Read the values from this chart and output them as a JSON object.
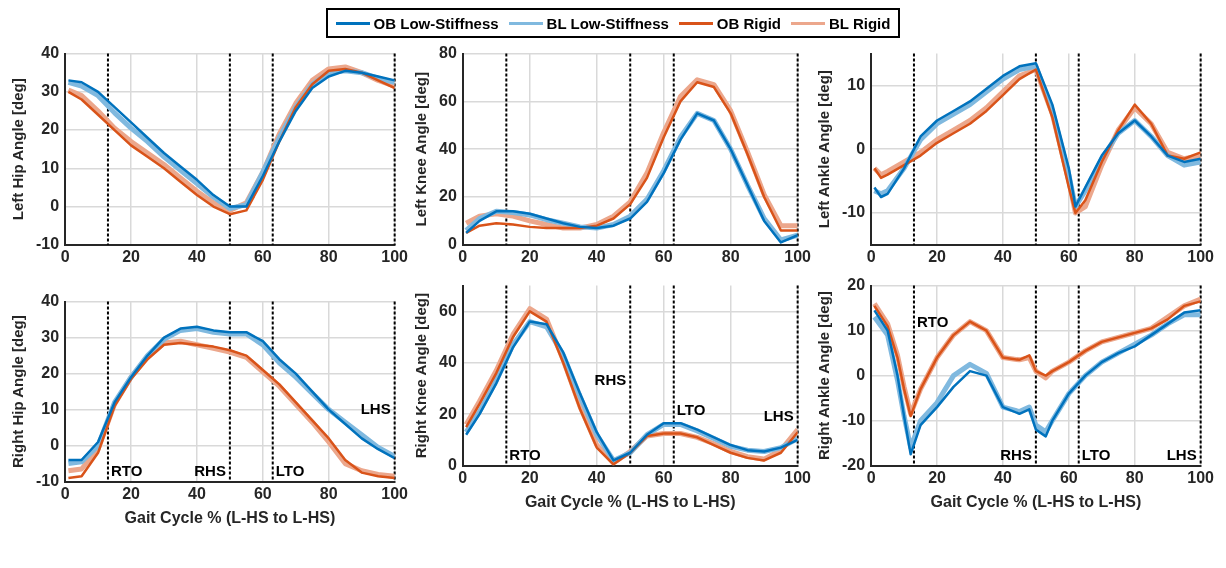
{
  "chart_data": [
    {
      "type": "line",
      "ylabel": "Left Hip Angle [deg]",
      "legend": "top",
      "grid": true,
      "xlim": [
        0,
        100
      ],
      "xticks": [
        0,
        20,
        40,
        60,
        80,
        100
      ],
      "ylim": [
        -10,
        40
      ],
      "yticks": [
        -10,
        0,
        10,
        20,
        30,
        40
      ],
      "x": [
        1,
        5,
        10,
        15,
        20,
        25,
        30,
        35,
        40,
        45,
        50,
        55,
        60,
        65,
        70,
        75,
        80,
        85,
        90,
        95,
        100
      ],
      "series": [
        {
          "name": "OB Low-Stiffness",
          "color": "#0072bd",
          "values": [
            33,
            32.5,
            30,
            26,
            22,
            18,
            14,
            10.5,
            7,
            3,
            0,
            0,
            8,
            17,
            25,
            31,
            34,
            35.5,
            35,
            34,
            33
          ]
        },
        {
          "name": "BL Low-Stiffness",
          "color": "#80b9df",
          "values": [
            32.5,
            31.5,
            29,
            24.5,
            20.5,
            17,
            13,
            9.5,
            6,
            2.5,
            -0.5,
            0.5,
            9,
            18,
            26,
            32,
            35,
            35.5,
            35,
            33.5,
            32.5
          ]
        },
        {
          "name": "OB Rigid",
          "color": "#d95319",
          "values": [
            30,
            28,
            24,
            20,
            16,
            13,
            10,
            6.5,
            3,
            0,
            -2,
            -1,
            7,
            17,
            26,
            32,
            35.5,
            36,
            35,
            33,
            31
          ]
        },
        {
          "name": "BL Rigid",
          "color": "#eca78c",
          "values": [
            30.5,
            29,
            25,
            20.5,
            17,
            14,
            11,
            7.5,
            4,
            1,
            -1,
            1,
            9,
            19,
            27,
            33,
            36,
            36.5,
            35,
            33,
            31.5
          ]
        }
      ],
      "ref_lines": [
        {
          "axis": "x",
          "value": 13,
          "line_style": "dotted",
          "color": "#000000"
        },
        {
          "axis": "x",
          "value": 50,
          "line_style": "dotted",
          "color": "#000000"
        },
        {
          "axis": "x",
          "value": 63,
          "line_style": "dotted",
          "color": "#000000"
        },
        {
          "axis": "x",
          "value": 100,
          "line_style": "dotted",
          "color": "#000000"
        }
      ]
    },
    {
      "type": "line",
      "ylabel": "Left Knee Angle [deg]",
      "grid": true,
      "xlim": [
        0,
        100
      ],
      "xticks": [
        0,
        20,
        40,
        60,
        80,
        100
      ],
      "ylim": [
        0,
        80
      ],
      "yticks": [
        0,
        20,
        40,
        60,
        80
      ],
      "x": [
        1,
        5,
        10,
        15,
        20,
        25,
        30,
        35,
        40,
        45,
        50,
        55,
        60,
        65,
        70,
        75,
        80,
        85,
        90,
        95,
        100
      ],
      "series": [
        {
          "color": "#0072bd",
          "values": [
            5,
            10,
            14,
            14,
            13,
            11,
            9,
            7.5,
            7,
            8,
            11,
            18,
            30,
            44,
            55,
            52,
            40,
            25,
            10,
            1,
            4
          ]
        },
        {
          "color": "#80b9df",
          "values": [
            6,
            11,
            14,
            13.5,
            12.5,
            10.5,
            9,
            7.5,
            7,
            8.5,
            12,
            19,
            31,
            45,
            55,
            52,
            40,
            25,
            11,
            2,
            4
          ]
        },
        {
          "color": "#d95319",
          "values": [
            5,
            8,
            9,
            8.5,
            7.5,
            7,
            7,
            7,
            8,
            11,
            17,
            28,
            45,
            60,
            68,
            66,
            55,
            38,
            20,
            6,
            6
          ]
        },
        {
          "color": "#eca78c",
          "values": [
            9,
            12,
            13,
            12,
            10,
            8.5,
            7,
            7,
            8.5,
            12,
            18,
            30,
            47,
            62,
            69,
            67,
            56,
            39,
            21,
            8,
            8
          ]
        }
      ],
      "ref_lines": [
        {
          "axis": "x",
          "value": 13,
          "line_style": "dotted",
          "color": "#000000"
        },
        {
          "axis": "x",
          "value": 50,
          "line_style": "dotted",
          "color": "#000000"
        },
        {
          "axis": "x",
          "value": 63,
          "line_style": "dotted",
          "color": "#000000"
        },
        {
          "axis": "x",
          "value": 100,
          "line_style": "dotted",
          "color": "#000000"
        }
      ]
    },
    {
      "type": "line",
      "ylabel": "Left Ankle Angle [deg]",
      "grid": true,
      "xlim": [
        0,
        100
      ],
      "xticks": [
        0,
        20,
        40,
        60,
        80,
        100
      ],
      "ylim": [
        -15,
        15
      ],
      "yticks": [
        -10,
        0,
        10
      ],
      "x": [
        1,
        3,
        5,
        10,
        15,
        20,
        25,
        30,
        35,
        40,
        45,
        50,
        55,
        60,
        62,
        65,
        70,
        75,
        80,
        85,
        90,
        95,
        100
      ],
      "series": [
        {
          "color": "#0072bd",
          "values": [
            -6,
            -7.5,
            -7,
            -3,
            2,
            4.5,
            6,
            7.5,
            9.5,
            11.5,
            13,
            13.5,
            7,
            -3,
            -9,
            -6,
            -1,
            2.5,
            4.5,
            2,
            -1,
            -2,
            -1.5
          ]
        },
        {
          "color": "#80b9df",
          "values": [
            -6.5,
            -7,
            -6.5,
            -3,
            1.5,
            4,
            5.5,
            7,
            9,
            11,
            12.5,
            13,
            6,
            -4,
            -9,
            -6.5,
            -1.5,
            2.5,
            4.5,
            2,
            -1,
            -2.5,
            -2
          ]
        },
        {
          "color": "#d95319",
          "values": [
            -3,
            -4.5,
            -4,
            -2.5,
            -1,
            1,
            2.5,
            4,
            6,
            8.5,
            11,
            12.5,
            5,
            -6,
            -10,
            -8,
            -2,
            3,
            7,
            4,
            -1,
            -1.5,
            -0.5
          ]
        },
        {
          "color": "#eca78c",
          "values": [
            -3,
            -4,
            -3.5,
            -2,
            -0.5,
            1.5,
            3,
            4.5,
            6.5,
            9,
            11.5,
            12.5,
            5.5,
            -5,
            -10,
            -9,
            -2.5,
            3,
            6.5,
            4,
            -0.5,
            -1.5,
            -1
          ]
        }
      ],
      "ref_lines": [
        {
          "axis": "x",
          "value": 13,
          "line_style": "dotted",
          "color": "#000000"
        },
        {
          "axis": "x",
          "value": 50,
          "line_style": "dotted",
          "color": "#000000"
        },
        {
          "axis": "x",
          "value": 63,
          "line_style": "dotted",
          "color": "#000000"
        },
        {
          "axis": "x",
          "value": 100,
          "line_style": "dotted",
          "color": "#000000"
        }
      ]
    },
    {
      "type": "line",
      "xlabel": "Gait Cycle % (L-HS to L-HS)",
      "ylabel": "Right Hip Angle [deg]",
      "grid": true,
      "xlim": [
        0,
        100
      ],
      "xticks": [
        0,
        20,
        40,
        60,
        80,
        100
      ],
      "ylim": [
        -10,
        40
      ],
      "yticks": [
        -10,
        0,
        10,
        20,
        30,
        40
      ],
      "x": [
        1,
        5,
        10,
        15,
        20,
        25,
        30,
        35,
        40,
        45,
        50,
        55,
        60,
        65,
        70,
        75,
        80,
        85,
        90,
        95,
        100
      ],
      "series": [
        {
          "color": "#0072bd",
          "values": [
            -4,
            -4,
            1,
            12,
            19,
            25,
            30,
            32.5,
            33,
            32,
            31.5,
            31.5,
            29,
            24,
            20,
            15,
            10,
            6,
            2,
            -1,
            -3.5
          ]
        },
        {
          "color": "#80b9df",
          "values": [
            -5,
            -4.5,
            0,
            12,
            19,
            25,
            29.5,
            32,
            32.5,
            31.5,
            31,
            31,
            28,
            23,
            19,
            14.5,
            10,
            6.5,
            3,
            -0.5,
            -3
          ]
        },
        {
          "color": "#d95319",
          "values": [
            -9,
            -8.5,
            -2,
            11,
            18.5,
            24,
            28,
            28.5,
            28,
            27.5,
            26.5,
            25,
            21,
            17,
            12,
            7,
            2,
            -4,
            -7.5,
            -8.5,
            -9
          ]
        },
        {
          "color": "#eca78c",
          "values": [
            -7,
            -6.5,
            -1,
            11.5,
            19,
            24.5,
            28.5,
            29,
            28,
            27,
            26,
            24.5,
            20.5,
            16.5,
            11.5,
            6.5,
            1,
            -5,
            -7,
            -8,
            -8.5
          ]
        }
      ],
      "ref_lines": [
        {
          "axis": "x",
          "value": 13,
          "label": "RTO",
          "line_style": "dotted",
          "color": "#000000"
        },
        {
          "axis": "x",
          "value": 50,
          "label": "RHS",
          "line_style": "dotted",
          "color": "#000000"
        },
        {
          "axis": "x",
          "value": 63,
          "label": "LTO",
          "line_style": "dotted",
          "color": "#000000"
        },
        {
          "axis": "x",
          "value": 100,
          "label": "LHS",
          "line_style": "dotted",
          "color": "#000000"
        }
      ]
    },
    {
      "type": "line",
      "xlabel": "Gait Cycle % (L-HS to L-HS)",
      "ylabel": "Right Knee Angle [deg]",
      "grid": true,
      "xlim": [
        0,
        100
      ],
      "xticks": [
        0,
        20,
        40,
        60,
        80,
        100
      ],
      "ylim": [
        0,
        70
      ],
      "yticks": [
        0,
        20,
        40,
        60
      ],
      "x": [
        1,
        5,
        10,
        15,
        20,
        25,
        30,
        35,
        40,
        45,
        50,
        55,
        60,
        65,
        70,
        75,
        80,
        85,
        90,
        95,
        100
      ],
      "series": [
        {
          "color": "#0072bd",
          "values": [
            12,
            20,
            32,
            46,
            56,
            55,
            44,
            28,
            13,
            2,
            5,
            12,
            16.5,
            16.5,
            14,
            11,
            8,
            6,
            5.5,
            7,
            10
          ]
        },
        {
          "color": "#80b9df",
          "values": [
            13,
            21,
            33,
            47,
            56,
            54,
            43,
            27,
            12,
            2,
            5,
            12,
            16,
            16,
            13.5,
            10.5,
            7.5,
            6,
            5.5,
            7,
            10.5
          ]
        },
        {
          "color": "#d95319",
          "values": [
            15,
            24,
            36,
            50,
            60,
            56,
            40,
            22,
            7,
            0.5,
            5,
            11.5,
            12.5,
            12.5,
            11,
            8,
            5,
            3,
            2,
            5,
            13
          ]
        },
        {
          "color": "#eca78c",
          "values": [
            16,
            25,
            37,
            51,
            61,
            57,
            41,
            23,
            8,
            1,
            5.5,
            11.5,
            12.5,
            12.5,
            11,
            8.5,
            5.5,
            3.5,
            2.5,
            6,
            14
          ]
        }
      ],
      "ref_lines": [
        {
          "axis": "x",
          "value": 13,
          "label": "RTO",
          "line_style": "dotted",
          "color": "#000000"
        },
        {
          "axis": "x",
          "value": 50,
          "label": "RHS",
          "line_style": "dotted",
          "color": "#000000"
        },
        {
          "axis": "x",
          "value": 63,
          "label": "LTO",
          "line_style": "dotted",
          "color": "#000000"
        },
        {
          "axis": "x",
          "value": 100,
          "label": "LHS",
          "line_style": "dotted",
          "color": "#000000"
        }
      ]
    },
    {
      "type": "line",
      "xlabel": "Gait Cycle % (L-HS to L-HS)",
      "ylabel": "Right Ankle Angle [deg]",
      "grid": true,
      "xlim": [
        0,
        100
      ],
      "xticks": [
        0,
        20,
        40,
        60,
        80,
        100
      ],
      "ylim": [
        -20,
        20
      ],
      "yticks": [
        -20,
        -10,
        0,
        10,
        20
      ],
      "x": [
        1,
        5,
        8,
        10,
        12,
        15,
        20,
        25,
        30,
        35,
        40,
        45,
        48,
        50,
        53,
        55,
        60,
        65,
        70,
        75,
        80,
        85,
        90,
        95,
        100
      ],
      "series": [
        {
          "color": "#0072bd",
          "values": [
            14.5,
            10,
            0,
            -9,
            -17.5,
            -11,
            -7,
            -2.5,
            1,
            0,
            -7,
            -8.5,
            -7.5,
            -12,
            -13.5,
            -10,
            -4,
            0,
            3,
            5,
            6.5,
            9,
            11.5,
            14,
            14.5
          ]
        },
        {
          "color": "#80b9df",
          "values": [
            13,
            9,
            -1,
            -9,
            -16,
            -10,
            -6,
            0,
            2.5,
            0.5,
            -7,
            -8,
            -7,
            -11,
            -12.5,
            -10,
            -4,
            0,
            3,
            5,
            7,
            9,
            11.5,
            13.5,
            13.5
          ]
        },
        {
          "color": "#d95319",
          "values": [
            15.5,
            11,
            4,
            -3,
            -9,
            -3,
            4,
            9,
            12,
            10,
            4,
            3.5,
            4.5,
            1,
            0,
            1,
            3,
            5.5,
            7.5,
            8.5,
            9.5,
            10.5,
            12.5,
            15.5,
            16.5
          ]
        },
        {
          "color": "#eca78c",
          "values": [
            16,
            11.5,
            4.5,
            -2.5,
            -8.5,
            -3,
            4,
            9,
            12,
            10,
            4,
            3.5,
            4,
            1,
            -0.5,
            1,
            3,
            5.5,
            7.5,
            8.5,
            9.5,
            10.5,
            13,
            15.5,
            17
          ]
        }
      ],
      "ref_lines": [
        {
          "axis": "x",
          "value": 13,
          "label": "RTO",
          "line_style": "dotted",
          "color": "#000000"
        },
        {
          "axis": "x",
          "value": 50,
          "label": "RHS",
          "line_style": "dotted",
          "color": "#000000"
        },
        {
          "axis": "x",
          "value": 63,
          "label": "LTO",
          "line_style": "dotted",
          "color": "#000000"
        },
        {
          "axis": "x",
          "value": 100,
          "label": "LHS",
          "line_style": "dotted",
          "color": "#000000"
        }
      ]
    }
  ]
}
